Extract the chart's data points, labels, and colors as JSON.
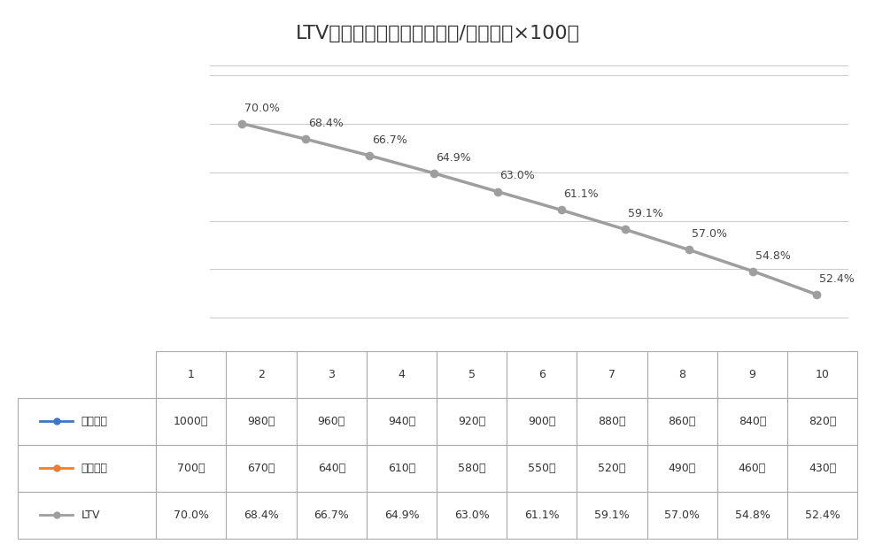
{
  "title": "LTV時系列グラフ（借入残高/物件価格×100）",
  "x": [
    1,
    2,
    3,
    4,
    5,
    6,
    7,
    8,
    9,
    10
  ],
  "ltv_values": [
    70.0,
    68.4,
    66.7,
    64.9,
    63.0,
    61.1,
    59.1,
    57.0,
    54.8,
    52.4
  ],
  "ltv_labels": [
    "70.0%",
    "68.4%",
    "66.7%",
    "64.9%",
    "63.0%",
    "61.1%",
    "59.1%",
    "57.0%",
    "54.8%",
    "52.4%"
  ],
  "property_values": [
    "1000万",
    "980万",
    "960万",
    "940万",
    "920万",
    "900万",
    "880万",
    "860万",
    "840万",
    "820万"
  ],
  "loan_values": [
    "700万",
    "670万",
    "640万",
    "610万",
    "580万",
    "550万",
    "520万",
    "490万",
    "460万",
    "430万"
  ],
  "ltv_row": [
    "70.0%",
    "68.4%",
    "66.7%",
    "64.9%",
    "63.0%",
    "61.1%",
    "59.1%",
    "57.0%",
    "54.8%",
    "52.4%"
  ],
  "ltv_line_color": "#9E9E9E",
  "property_line_color": "#4472C4",
  "loan_line_color": "#ED7D31",
  "background_color": "#FFFFFF",
  "plot_bg_color": "#FFFFFF",
  "grid_color": "#CCCCCC",
  "title_fontsize": 16,
  "label_fontsize": 9,
  "table_fontsize": 9,
  "ylim_min": 48,
  "ylim_max": 76,
  "legend_property": "物件価格",
  "legend_loan": "借入残高",
  "legend_ltv": "LTV",
  "x_labels": [
    "1",
    "2",
    "3",
    "4",
    "5",
    "6",
    "7",
    "8",
    "9",
    "10"
  ]
}
